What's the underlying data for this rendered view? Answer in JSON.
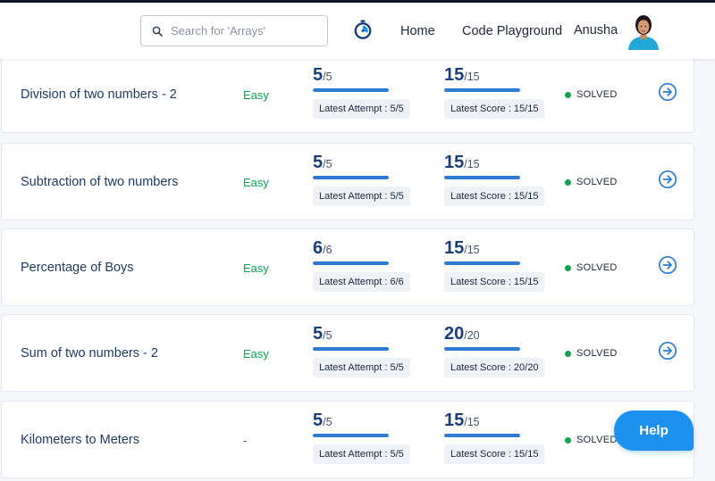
{
  "header": {
    "search_placeholder": "Search for 'Arrays'",
    "search_icon": "search-icon",
    "timer_icon": "stopwatch-icon",
    "nav": {
      "home": "Home",
      "playground": "Code Playground"
    },
    "user_name": "Anusha"
  },
  "colors": {
    "accent_blue": "#2d7cd1",
    "easy_green": "#12a150",
    "help_blue": "#1e90ee"
  },
  "questions": [
    {
      "name": "Division of two numbers - 2",
      "difficulty": "Easy",
      "attempt_value": "5",
      "attempt_total": "/5",
      "attempt_fraction": 1.0,
      "attempt_label": "Latest Attempt : 5/5",
      "score_value": "15",
      "score_total": "/15",
      "score_fraction": 1.0,
      "score_label": "Latest Score : 15/15",
      "status": "SOLVED"
    },
    {
      "name": "Subtraction of two numbers",
      "difficulty": "Easy",
      "attempt_value": "5",
      "attempt_total": "/5",
      "attempt_fraction": 1.0,
      "attempt_label": "Latest Attempt : 5/5",
      "score_value": "15",
      "score_total": "/15",
      "score_fraction": 1.0,
      "score_label": "Latest Score : 15/15",
      "status": "SOLVED"
    },
    {
      "name": "Percentage of Boys",
      "difficulty": "Easy",
      "attempt_value": "6",
      "attempt_total": "/6",
      "attempt_fraction": 1.0,
      "attempt_label": "Latest Attempt : 6/6",
      "score_value": "15",
      "score_total": "/15",
      "score_fraction": 1.0,
      "score_label": "Latest Score : 15/15",
      "status": "SOLVED"
    },
    {
      "name": "Sum of two numbers - 2",
      "difficulty": "Easy",
      "attempt_value": "5",
      "attempt_total": "/5",
      "attempt_fraction": 1.0,
      "attempt_label": "Latest Attempt : 5/5",
      "score_value": "20",
      "score_total": "/20",
      "score_fraction": 1.0,
      "score_label": "Latest Score : 20/20",
      "status": "SOLVED"
    },
    {
      "name": "Kilometers to Meters",
      "difficulty": "-",
      "attempt_value": "5",
      "attempt_total": "/5",
      "attempt_fraction": 1.0,
      "attempt_label": "Latest Attempt : 5/5",
      "score_value": "15",
      "score_total": "/15",
      "score_fraction": 1.0,
      "score_label": "Latest Score : 15/15",
      "status": "SOLVED"
    }
  ],
  "help_label": "Help"
}
